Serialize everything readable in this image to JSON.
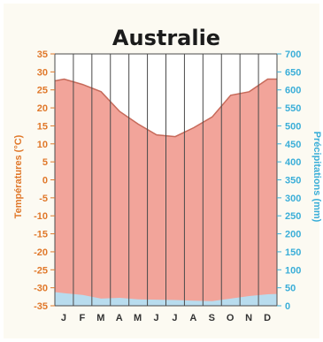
{
  "chart_data": {
    "type": "line",
    "title": "Australie",
    "ylabel_left": "Températures (°C)",
    "ylabel_right": "Précipitations (mm)",
    "categories": [
      "J",
      "F",
      "M",
      "A",
      "M",
      "J",
      "J",
      "A",
      "S",
      "O",
      "N",
      "D"
    ],
    "left_ticks": [
      "35",
      "30",
      "25",
      "20",
      "15",
      "10",
      "5",
      "0",
      "-5",
      "-10",
      "-15",
      "-20",
      "-25",
      "-30",
      "-35"
    ],
    "right_ticks": [
      "700",
      "650",
      "600",
      "550",
      "500",
      "450",
      "400",
      "350",
      "300",
      "250",
      "200",
      "150",
      "100",
      "50",
      "0"
    ],
    "ylim_left": [
      -35,
      35
    ],
    "ylim_right": [
      0,
      700
    ],
    "grid": "vertical lines at month boundaries",
    "series": [
      {
        "name": "Températures (°C)",
        "axis": "left",
        "style": "filled area down to axis minimum",
        "color": "#f2a49a",
        "line_color": "#c66a5a",
        "x": [
          0,
          0.5,
          1.5,
          2.5,
          3.5,
          4.5,
          5.5,
          6.5,
          7.5,
          8.5,
          9.5,
          10.5,
          11.5,
          12
        ],
        "y": [
          27.5,
          28,
          26.5,
          24.5,
          19,
          15.5,
          12.5,
          12,
          14.5,
          17.5,
          23.5,
          24.5,
          28,
          28
        ]
      },
      {
        "name": "Précipitations (mm)",
        "axis": "right",
        "style": "filled area from zero",
        "color": "#b8dcee",
        "x": [
          0,
          0.5,
          1.5,
          2.5,
          3.5,
          4.5,
          5.5,
          6.5,
          7.5,
          8.5,
          9.5,
          10.5,
          11.5,
          12
        ],
        "y": [
          38,
          35,
          30,
          20,
          22,
          18,
          17,
          16,
          14,
          13,
          20,
          27,
          32,
          33
        ]
      }
    ],
    "colors": {
      "temperature_fill": "#f2a49a",
      "temperature_line": "#c66a5a",
      "precip_fill": "#b8dcee",
      "left_axis": "#e0782a",
      "right_axis": "#3aaed8",
      "grid": "#4a4a4a",
      "background": "#fcfaf2"
    }
  }
}
